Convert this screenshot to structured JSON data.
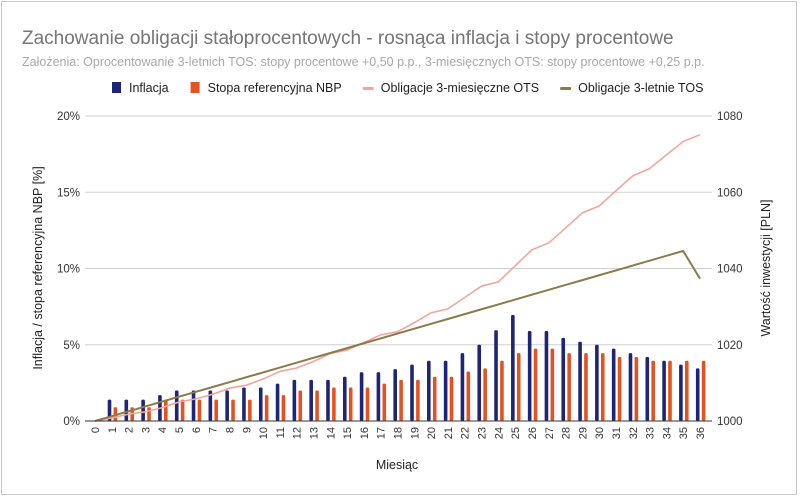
{
  "chart_data": {
    "type": "bar+line",
    "title": "Zachowanie obligacji stałoprocentowych - rosnąca inflacja i stopy procentowe",
    "subtitle": "Założenia: Oprocentowanie 3-letnich TOS: stopy procentowe +0,50 p.p., 3-miesięcznych OTS: stopy procentowe +0,25 p.p.",
    "xlabel": "Miesiąc",
    "ylabel_left": "Inflacja / stopa referencyjna NBP [%]",
    "ylabel_right": "Wartość inwestycji [PLN]",
    "ylim_left": [
      0,
      20
    ],
    "yticks_left": [
      "0%",
      "5%",
      "10%",
      "15%",
      "20%"
    ],
    "ylim_right": [
      1000,
      1080
    ],
    "yticks_right": [
      "1000",
      "1020",
      "1040",
      "1060",
      "1080"
    ],
    "grid": true,
    "legend_placement": "top",
    "categories": [
      0,
      1,
      2,
      3,
      4,
      5,
      6,
      7,
      8,
      9,
      10,
      11,
      12,
      13,
      14,
      15,
      16,
      17,
      18,
      19,
      20,
      21,
      22,
      23,
      24,
      25,
      26,
      27,
      28,
      29,
      30,
      31,
      32,
      33,
      34,
      35,
      36
    ],
    "series": [
      {
        "name": "Inflacja",
        "type": "bar",
        "axis": "left",
        "color": "#1c2576",
        "values": [
          null,
          1.4,
          1.4,
          1.4,
          1.7,
          2.0,
          2.0,
          2.0,
          2.0,
          2.2,
          2.2,
          2.45,
          2.7,
          2.7,
          2.7,
          2.9,
          3.2,
          3.2,
          3.4,
          3.7,
          3.95,
          3.95,
          4.45,
          5.0,
          5.95,
          6.95,
          5.9,
          5.9,
          5.45,
          5.2,
          5.0,
          4.75,
          4.45,
          4.2,
          3.95,
          3.7,
          3.45
        ]
      },
      {
        "name": "Stopa referencyjna NBP",
        "type": "bar",
        "axis": "left",
        "color": "#e4531f",
        "values": [
          null,
          0.9,
          0.9,
          0.9,
          1.4,
          1.4,
          1.4,
          1.4,
          1.4,
          1.4,
          1.7,
          1.7,
          2.0,
          2.0,
          2.2,
          2.2,
          2.2,
          2.45,
          2.7,
          2.7,
          2.9,
          2.9,
          3.25,
          3.45,
          3.95,
          4.45,
          4.75,
          4.75,
          4.45,
          4.45,
          4.45,
          4.2,
          4.2,
          3.95,
          3.95,
          3.95,
          3.95
        ]
      },
      {
        "name": "Obligacje 3-miesięczne OTS",
        "type": "line",
        "axis": "right",
        "color": "#f2a59c",
        "values": [
          1000,
          1000.8,
          1001.8,
          1002.4,
          1003.5,
          1005.0,
          1005.8,
          1007.0,
          1008.6,
          1009.4,
          1011.0,
          1013.0,
          1013.9,
          1015.6,
          1017.7,
          1018.6,
          1020.6,
          1022.6,
          1023.4,
          1025.8,
          1028.4,
          1029.4,
          1032.4,
          1035.4,
          1036.5,
          1040.7,
          1044.9,
          1046.7,
          1050.6,
          1054.6,
          1056.4,
          1060.4,
          1064.3,
          1066.2,
          1069.8,
          1073.3,
          1075.1
        ]
      },
      {
        "name": "Obligacje 3-letnie TOS",
        "type": "line",
        "axis": "right",
        "color": "#8c7a4b",
        "values": [
          1000,
          1001.27,
          1002.55,
          1003.82,
          1005.1,
          1006.37,
          1007.65,
          1008.92,
          1010.19,
          1011.47,
          1012.74,
          1014.02,
          1015.29,
          1016.57,
          1017.84,
          1019.11,
          1020.39,
          1021.66,
          1022.94,
          1024.21,
          1025.49,
          1026.76,
          1028.03,
          1029.31,
          1030.58,
          1031.86,
          1033.13,
          1034.41,
          1035.68,
          1036.95,
          1038.23,
          1039.5,
          1040.78,
          1042.05,
          1043.33,
          1044.6,
          1037.3
        ]
      }
    ]
  }
}
